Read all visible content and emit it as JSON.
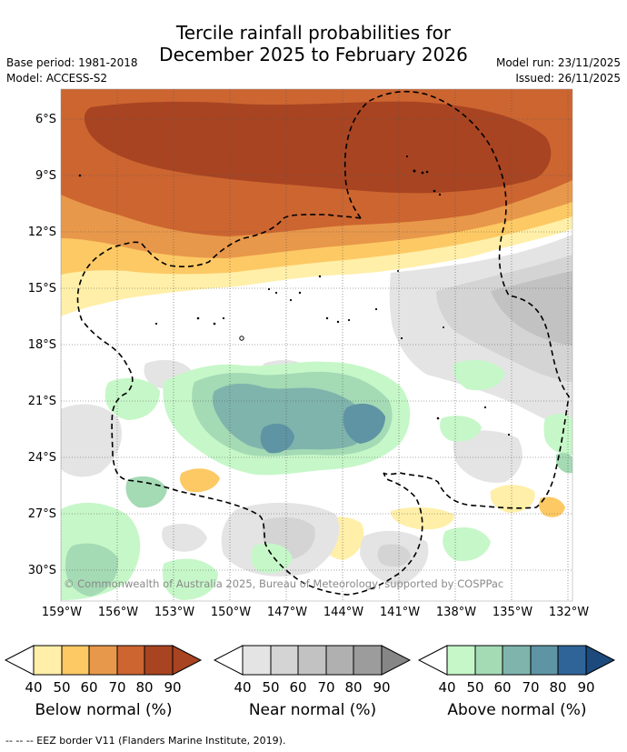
{
  "title": {
    "line1": "Tercile rainfall probabilities for",
    "line2": "December 2025 to February 2026"
  },
  "meta": {
    "base_period": "Base period: 1981-2018",
    "model": "Model: ACCESS-S2",
    "model_run": "Model run: 23/11/2025",
    "issued": "Issued: 26/11/2025"
  },
  "map": {
    "lat_labels": [
      "6°S",
      "9°S",
      "12°S",
      "15°S",
      "18°S",
      "21°S",
      "24°S",
      "27°S",
      "30°S"
    ],
    "lon_labels": [
      "159°W",
      "156°W",
      "153°W",
      "150°W",
      "147°W",
      "144°W",
      "141°W",
      "138°W",
      "135°W",
      "132°W"
    ],
    "copyright": "© Commonwealth of Australia 2025, Bureau of Meteorology, supported by COSPPac"
  },
  "legend": {
    "tick_labels": [
      "40",
      "50",
      "60",
      "70",
      "80",
      "90"
    ],
    "below": {
      "title": "Below normal (%)",
      "colors": [
        "#ffefa8",
        "#fdc964",
        "#e8984a",
        "#cc6530",
        "#a84422"
      ]
    },
    "near": {
      "title": "Near normal (%)",
      "colors": [
        "#e4e4e4",
        "#d4d4d4",
        "#c2c2c2",
        "#b0b0b0",
        "#9c9c9c"
      ]
    },
    "above": {
      "title": "Above normal (%)",
      "colors": [
        "#c6f7c8",
        "#a4dab4",
        "#7fb4ad",
        "#5e94a3",
        "#2f6498"
      ]
    }
  },
  "footer": "--  --  -- EEZ border V11 (Flanders Marine Institute, 2019)."
}
